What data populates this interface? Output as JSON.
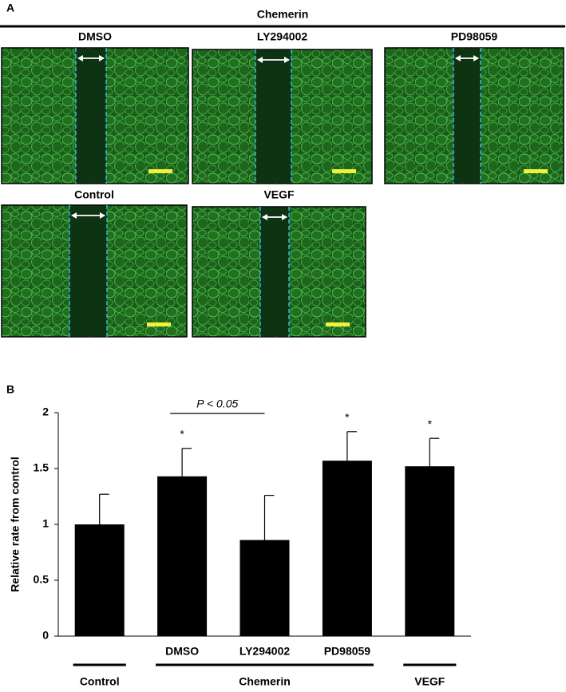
{
  "panel_a": {
    "label": "A",
    "group": "Chemerin",
    "panels": [
      "DMSO",
      "LY294002",
      "PD98059",
      "Control",
      "VEGF"
    ]
  },
  "chart_data": {
    "type": "bar",
    "panel_label": "B",
    "y_label": "Relative rate from control",
    "categories": [
      null,
      "DMSO",
      "LY294002",
      "PD98059",
      null
    ],
    "values": [
      1.0,
      1.43,
      0.86,
      1.57,
      1.52
    ],
    "errors": [
      0.27,
      0.25,
      0.4,
      0.26,
      0.25
    ],
    "color": "#000000",
    "ylim": [
      0,
      2
    ],
    "yticks": [
      0,
      0.5,
      1,
      1.5,
      2
    ],
    "groups": [
      {
        "name": "Control",
        "span": [
          0,
          0
        ]
      },
      {
        "name": "Chemerin",
        "span": [
          1,
          3
        ]
      },
      {
        "name": "VEGF",
        "span": [
          4,
          4
        ]
      }
    ],
    "annotations": [
      {
        "text": "*",
        "category": 1
      },
      {
        "text": "*",
        "category": 3
      },
      {
        "text": "*",
        "category": 4
      },
      {
        "text": "P < 0.05",
        "from": 1,
        "to": 2
      }
    ]
  }
}
